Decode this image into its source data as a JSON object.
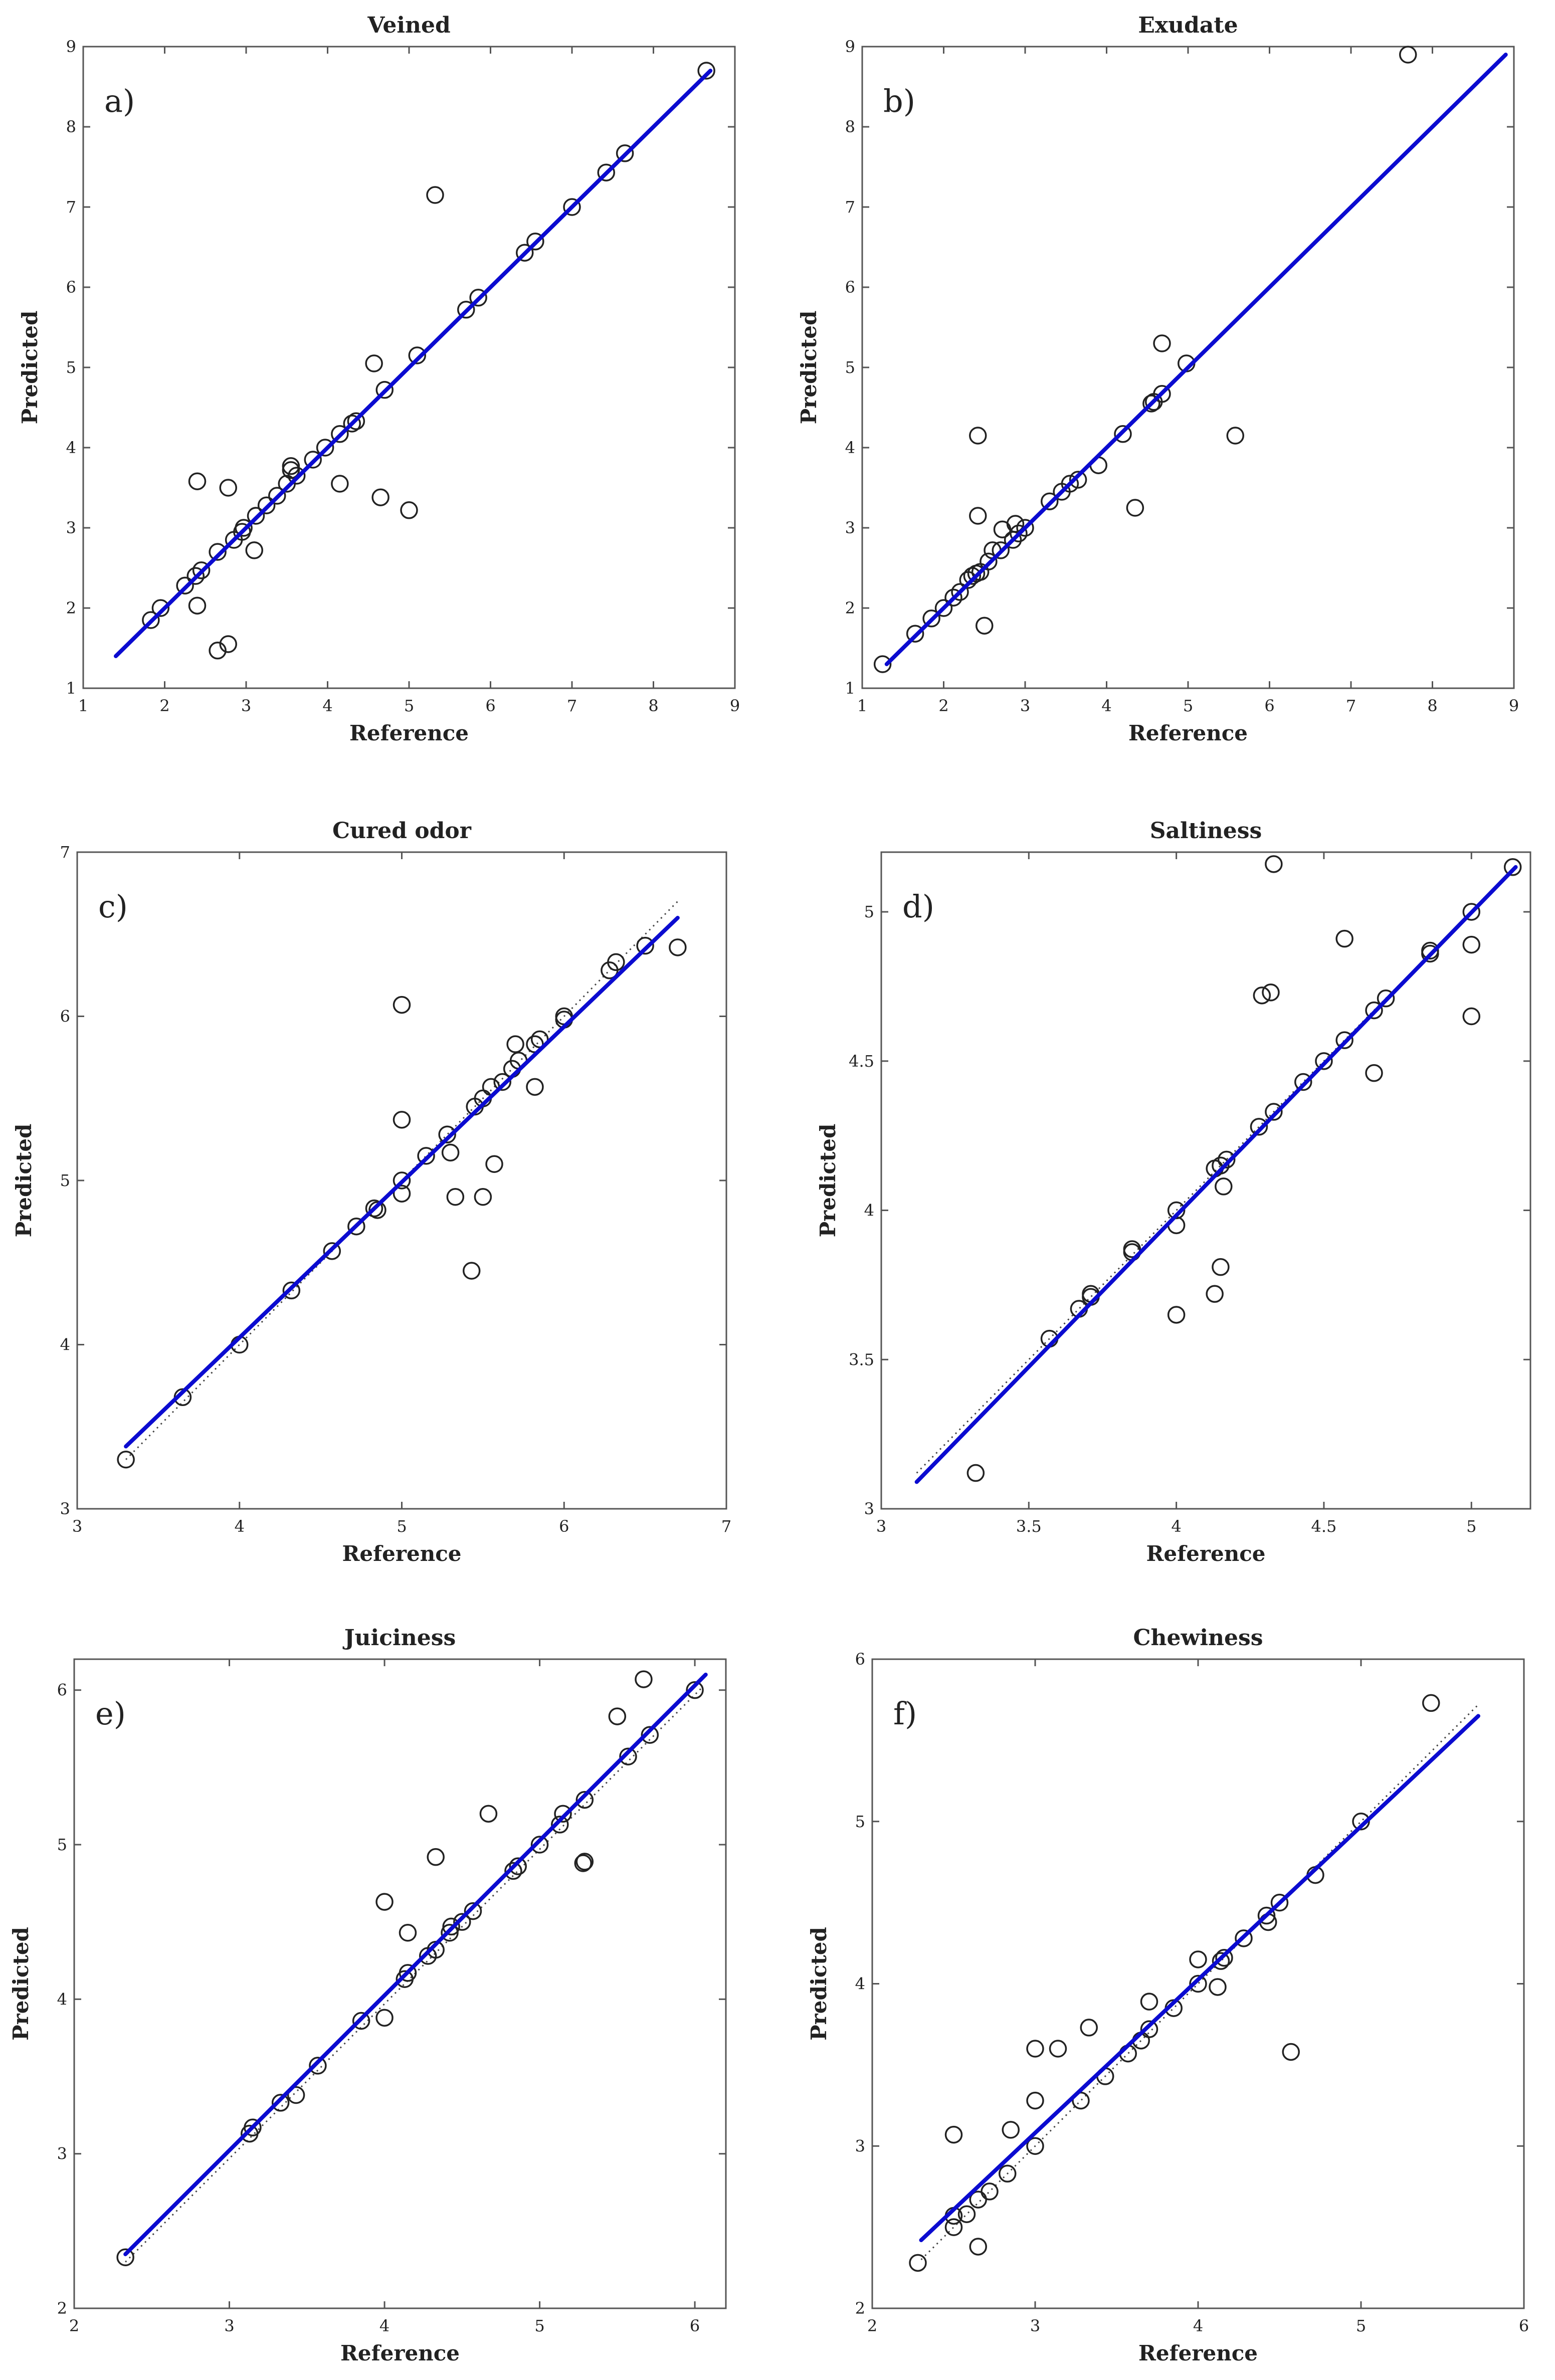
{
  "figure": {
    "panel_count": 6
  },
  "chart_data": [
    {
      "type": "scatter",
      "panel_label": "a)",
      "title": "Veined",
      "xlabel": "Reference",
      "ylabel": "Predicted",
      "xlim": [
        1,
        9
      ],
      "ylim": [
        1,
        9
      ],
      "xticks": [
        1,
        2,
        3,
        4,
        5,
        6,
        7,
        8,
        9
      ],
      "yticks": [
        1,
        2,
        3,
        4,
        5,
        6,
        7,
        8,
        9
      ],
      "fit_line": {
        "x": [
          1.4,
          8.7
        ],
        "y": [
          1.4,
          8.7
        ],
        "color": "#0b0bd0"
      },
      "reference_line": null,
      "points": [
        [
          1.83,
          1.85
        ],
        [
          1.95,
          2.0
        ],
        [
          2.25,
          2.28
        ],
        [
          2.38,
          2.4
        ],
        [
          2.45,
          2.47
        ],
        [
          2.4,
          2.03
        ],
        [
          2.4,
          3.58
        ],
        [
          2.65,
          2.7
        ],
        [
          2.65,
          1.47
        ],
        [
          2.78,
          1.55
        ],
        [
          2.78,
          3.5
        ],
        [
          2.85,
          2.85
        ],
        [
          2.95,
          2.95
        ],
        [
          2.97,
          3.0
        ],
        [
          3.1,
          2.72
        ],
        [
          3.12,
          3.15
        ],
        [
          3.25,
          3.28
        ],
        [
          3.38,
          3.4
        ],
        [
          3.5,
          3.55
        ],
        [
          3.55,
          3.72
        ],
        [
          3.55,
          3.77
        ],
        [
          3.62,
          3.65
        ],
        [
          3.82,
          3.85
        ],
        [
          3.97,
          4.0
        ],
        [
          4.15,
          3.55
        ],
        [
          4.15,
          4.17
        ],
        [
          4.3,
          4.3
        ],
        [
          4.35,
          4.33
        ],
        [
          4.57,
          5.05
        ],
        [
          4.65,
          3.38
        ],
        [
          4.7,
          4.72
        ],
        [
          5.0,
          3.22
        ],
        [
          5.1,
          5.15
        ],
        [
          5.32,
          7.15
        ],
        [
          5.7,
          5.72
        ],
        [
          5.85,
          5.87
        ],
        [
          6.42,
          6.43
        ],
        [
          6.55,
          6.57
        ],
        [
          7.0,
          7.0
        ],
        [
          7.42,
          7.43
        ],
        [
          7.65,
          7.67
        ],
        [
          8.65,
          8.7
        ]
      ]
    },
    {
      "type": "scatter",
      "panel_label": "b)",
      "title": "Exudate",
      "xlabel": "Reference",
      "ylabel": "Predicted",
      "xlim": [
        1,
        9
      ],
      "ylim": [
        1,
        9
      ],
      "xticks": [
        1,
        2,
        3,
        4,
        5,
        6,
        7,
        8,
        9
      ],
      "yticks": [
        1,
        2,
        3,
        4,
        5,
        6,
        7,
        8,
        9
      ],
      "fit_line": {
        "x": [
          1.3,
          8.9
        ],
        "y": [
          1.3,
          8.9
        ],
        "color": "#0b0bd0"
      },
      "reference_line": null,
      "points": [
        [
          1.25,
          1.3
        ],
        [
          1.65,
          1.68
        ],
        [
          1.85,
          1.87
        ],
        [
          2.0,
          2.0
        ],
        [
          2.12,
          2.13
        ],
        [
          2.2,
          2.2
        ],
        [
          2.3,
          2.35
        ],
        [
          2.35,
          2.4
        ],
        [
          2.4,
          2.43
        ],
        [
          2.45,
          2.45
        ],
        [
          2.42,
          3.15
        ],
        [
          2.42,
          4.15
        ],
        [
          2.5,
          1.78
        ],
        [
          2.55,
          2.58
        ],
        [
          2.6,
          2.72
        ],
        [
          2.7,
          2.72
        ],
        [
          2.72,
          2.98
        ],
        [
          2.85,
          2.85
        ],
        [
          2.88,
          3.05
        ],
        [
          2.92,
          2.93
        ],
        [
          3.0,
          3.0
        ],
        [
          3.3,
          3.33
        ],
        [
          3.45,
          3.45
        ],
        [
          3.55,
          3.55
        ],
        [
          3.65,
          3.6
        ],
        [
          3.9,
          3.78
        ],
        [
          4.2,
          4.17
        ],
        [
          4.35,
          3.25
        ],
        [
          4.55,
          4.55
        ],
        [
          4.58,
          4.57
        ],
        [
          4.68,
          4.67
        ],
        [
          4.68,
          5.3
        ],
        [
          4.98,
          5.05
        ],
        [
          5.58,
          4.15
        ],
        [
          7.7,
          8.9
        ]
      ]
    },
    {
      "type": "scatter",
      "panel_label": "c)",
      "title": "Cured odor",
      "xlabel": "Reference",
      "ylabel": "Predicted",
      "xlim": [
        3,
        7
      ],
      "ylim": [
        3,
        7
      ],
      "xticks": [
        3,
        4,
        5,
        6,
        7
      ],
      "yticks": [
        3,
        4,
        5,
        6,
        7
      ],
      "fit_line": {
        "x": [
          3.3,
          6.7
        ],
        "y": [
          3.38,
          6.6
        ],
        "color": "#0b0bd0"
      },
      "reference_line": {
        "x": [
          3.3,
          6.7
        ],
        "y": [
          3.3,
          6.7
        ]
      },
      "points": [
        [
          3.3,
          3.3
        ],
        [
          3.65,
          3.68
        ],
        [
          4.0,
          4.0
        ],
        [
          4.32,
          4.33
        ],
        [
          4.57,
          4.57
        ],
        [
          4.72,
          4.72
        ],
        [
          4.83,
          4.83
        ],
        [
          4.85,
          4.82
        ],
        [
          5.0,
          5.0
        ],
        [
          5.0,
          4.92
        ],
        [
          5.0,
          5.37
        ],
        [
          5.0,
          6.07
        ],
        [
          5.15,
          5.15
        ],
        [
          5.28,
          5.28
        ],
        [
          5.3,
          5.17
        ],
        [
          5.33,
          4.9
        ],
        [
          5.43,
          4.45
        ],
        [
          5.45,
          5.45
        ],
        [
          5.5,
          5.5
        ],
        [
          5.5,
          4.9
        ],
        [
          5.55,
          5.57
        ],
        [
          5.57,
          5.1
        ],
        [
          5.62,
          5.6
        ],
        [
          5.68,
          5.68
        ],
        [
          5.72,
          5.73
        ],
        [
          5.7,
          5.83
        ],
        [
          5.82,
          5.83
        ],
        [
          5.82,
          5.57
        ],
        [
          5.85,
          5.86
        ],
        [
          6.0,
          6.0
        ],
        [
          6.0,
          5.98
        ],
        [
          6.28,
          6.28
        ],
        [
          6.32,
          6.33
        ],
        [
          6.5,
          6.43
        ],
        [
          6.7,
          6.42
        ]
      ]
    },
    {
      "type": "scatter",
      "panel_label": "d)",
      "title": "Saltiness",
      "xlabel": "Reference",
      "ylabel": "Predicted",
      "xlim": [
        3,
        5.2
      ],
      "ylim": [
        3,
        5.2
      ],
      "xticks": [
        3,
        3.5,
        4,
        4.5,
        5
      ],
      "yticks": [
        3,
        3.5,
        4,
        4.5,
        5
      ],
      "fit_line": {
        "x": [
          3.12,
          5.15
        ],
        "y": [
          3.09,
          5.15
        ],
        "color": "#0b0bd0"
      },
      "reference_line": {
        "x": [
          3.12,
          5.15
        ],
        "y": [
          3.12,
          5.15
        ]
      },
      "points": [
        [
          3.32,
          3.12
        ],
        [
          3.57,
          3.57
        ],
        [
          3.67,
          3.67
        ],
        [
          3.71,
          3.71
        ],
        [
          3.71,
          3.72
        ],
        [
          3.85,
          3.86
        ],
        [
          3.85,
          3.87
        ],
        [
          4.0,
          4.0
        ],
        [
          4.0,
          3.95
        ],
        [
          4.0,
          3.65
        ],
        [
          4.13,
          4.14
        ],
        [
          4.13,
          3.72
        ],
        [
          4.15,
          4.15
        ],
        [
          4.15,
          3.81
        ],
        [
          4.16,
          4.08
        ],
        [
          4.17,
          4.17
        ],
        [
          4.28,
          4.28
        ],
        [
          4.29,
          4.72
        ],
        [
          4.32,
          4.73
        ],
        [
          4.33,
          4.33
        ],
        [
          4.33,
          5.16
        ],
        [
          4.43,
          4.43
        ],
        [
          4.5,
          4.5
        ],
        [
          4.57,
          4.57
        ],
        [
          4.57,
          4.91
        ],
        [
          4.67,
          4.67
        ],
        [
          4.67,
          4.46
        ],
        [
          4.71,
          4.71
        ],
        [
          4.86,
          4.86
        ],
        [
          4.86,
          4.87
        ],
        [
          5.0,
          5.0
        ],
        [
          5.0,
          4.89
        ],
        [
          5.0,
          4.65
        ],
        [
          5.14,
          5.15
        ]
      ]
    },
    {
      "type": "scatter",
      "panel_label": "e)",
      "title": "Juiciness",
      "xlabel": "Reference",
      "ylabel": "Predicted",
      "xlim": [
        2,
        6.2
      ],
      "ylim": [
        2,
        6.2
      ],
      "xticks": [
        2,
        3,
        4,
        5,
        6
      ],
      "yticks": [
        2,
        3,
        4,
        5,
        6
      ],
      "fit_line": {
        "x": [
          2.33,
          6.07
        ],
        "y": [
          2.35,
          6.1
        ],
        "color": "#0b0bd0"
      },
      "reference_line": {
        "x": [
          2.33,
          6.05
        ],
        "y": [
          2.3,
          6.02
        ]
      },
      "points": [
        [
          2.33,
          2.33
        ],
        [
          3.13,
          3.13
        ],
        [
          3.15,
          3.17
        ],
        [
          3.33,
          3.33
        ],
        [
          3.43,
          3.38
        ],
        [
          3.57,
          3.57
        ],
        [
          3.85,
          3.86
        ],
        [
          4.0,
          3.88
        ],
        [
          4.0,
          4.63
        ],
        [
          4.13,
          4.13
        ],
        [
          4.15,
          4.17
        ],
        [
          4.15,
          4.43
        ],
        [
          4.28,
          4.28
        ],
        [
          4.33,
          4.32
        ],
        [
          4.33,
          4.92
        ],
        [
          4.42,
          4.43
        ],
        [
          4.43,
          4.47
        ],
        [
          4.5,
          4.5
        ],
        [
          4.57,
          4.57
        ],
        [
          4.67,
          5.2
        ],
        [
          4.83,
          4.83
        ],
        [
          4.86,
          4.86
        ],
        [
          5.0,
          5.0
        ],
        [
          5.13,
          5.13
        ],
        [
          5.15,
          5.2
        ],
        [
          5.28,
          4.88
        ],
        [
          5.29,
          4.89
        ],
        [
          5.29,
          5.29
        ],
        [
          5.5,
          5.83
        ],
        [
          5.57,
          5.57
        ],
        [
          5.67,
          6.07
        ],
        [
          5.71,
          5.71
        ],
        [
          6.0,
          6.0
        ]
      ]
    },
    {
      "type": "scatter",
      "panel_label": "f)",
      "title": "Chewiness",
      "xlabel": "Reference",
      "ylabel": "Predicted",
      "xlim": [
        2,
        6
      ],
      "ylim": [
        2,
        6
      ],
      "xticks": [
        2,
        3,
        4,
        5,
        6
      ],
      "yticks": [
        2,
        3,
        4,
        5,
        6
      ],
      "fit_line": {
        "x": [
          2.3,
          5.72
        ],
        "y": [
          2.42,
          5.65
        ],
        "color": "#0b0bd0"
      },
      "reference_line": {
        "x": [
          2.3,
          5.72
        ],
        "y": [
          2.3,
          5.72
        ]
      },
      "points": [
        [
          2.28,
          2.28
        ],
        [
          2.5,
          2.5
        ],
        [
          2.5,
          2.57
        ],
        [
          2.5,
          3.07
        ],
        [
          2.58,
          2.58
        ],
        [
          2.65,
          2.67
        ],
        [
          2.65,
          2.38
        ],
        [
          2.72,
          2.72
        ],
        [
          2.83,
          2.83
        ],
        [
          2.85,
          3.1
        ],
        [
          3.0,
          3.0
        ],
        [
          3.0,
          3.28
        ],
        [
          3.0,
          3.6
        ],
        [
          3.14,
          3.6
        ],
        [
          3.28,
          3.28
        ],
        [
          3.33,
          3.73
        ],
        [
          3.43,
          3.43
        ],
        [
          3.57,
          3.57
        ],
        [
          3.65,
          3.65
        ],
        [
          3.7,
          3.72
        ],
        [
          3.7,
          3.89
        ],
        [
          3.85,
          3.85
        ],
        [
          4.0,
          4.0
        ],
        [
          4.0,
          4.15
        ],
        [
          4.12,
          3.98
        ],
        [
          4.14,
          4.14
        ],
        [
          4.16,
          4.16
        ],
        [
          4.28,
          4.28
        ],
        [
          4.42,
          4.42
        ],
        [
          4.43,
          4.38
        ],
        [
          4.5,
          4.5
        ],
        [
          4.57,
          3.58
        ],
        [
          4.72,
          4.67
        ],
        [
          5.0,
          5.0
        ],
        [
          5.43,
          5.73
        ]
      ]
    }
  ]
}
